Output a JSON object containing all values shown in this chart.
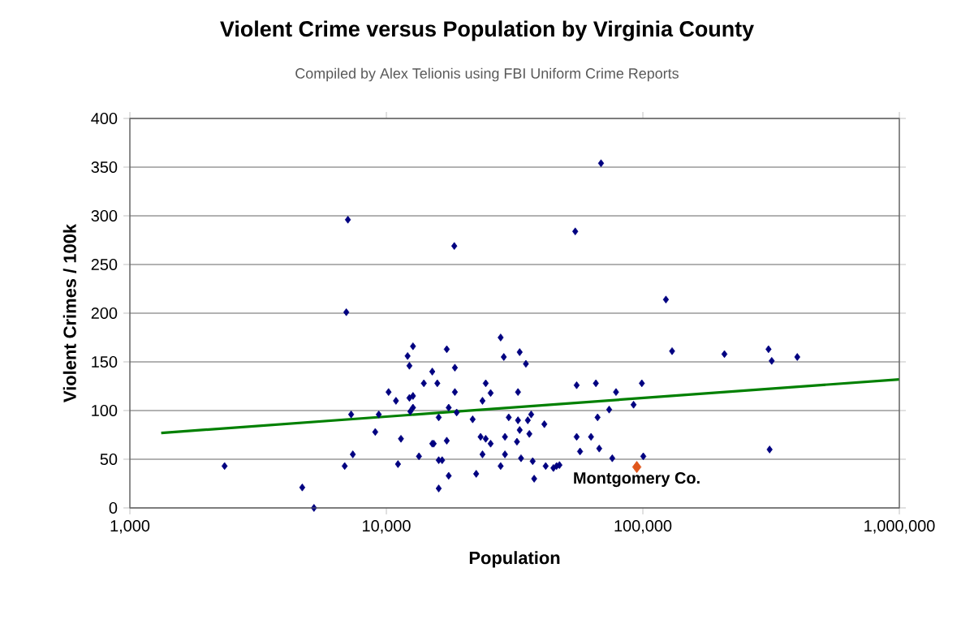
{
  "chart_data": {
    "type": "scatter",
    "title": "Violent Crime versus Population by Virginia County",
    "subtitle": "Compiled by Alex Telionis using FBI Uniform Crime Reports",
    "xlabel": "Population",
    "ylabel": "Violent Crimes / 100k",
    "log": "x",
    "grid": "y",
    "marker": "diamond",
    "xlim": [
      1000,
      1000000
    ],
    "xticks": [
      {
        "value": 1000,
        "label": "1,000"
      },
      {
        "value": 10000,
        "label": "10,000"
      },
      {
        "value": 100000,
        "label": "100,000"
      },
      {
        "value": 1000000,
        "label": "1,000,000"
      }
    ],
    "ylim": [
      0,
      400
    ],
    "yticks": [
      0,
      50,
      100,
      150,
      200,
      250,
      300,
      350,
      400
    ],
    "series": [
      {
        "color": "#000080",
        "x": [
          6980,
          12700,
          12100,
          12300,
          10200,
          10900,
          12300,
          12700,
          12700,
          12400,
          7290,
          9340,
          9050,
          11400,
          2340,
          6880,
          7400,
          11100,
          13400,
          4700,
          5220,
          7080,
          68700,
          54500,
          18400,
          123000,
          130000,
          17200,
          15100,
          14000,
          15800,
          18500,
          18500,
          17500,
          16000,
          18800,
          27900,
          28700,
          33100,
          35000,
          24400,
          25500,
          23700,
          32600,
          21700,
          30000,
          36700,
          35600,
          32600,
          33100,
          36100,
          41300,
          23300,
          24400,
          25500,
          29000,
          32300,
          15100,
          15300,
          17200,
          16000,
          16500,
          23700,
          29000,
          33500,
          37200,
          27900,
          41800,
          44800,
          46100,
          47300,
          17500,
          22400,
          37700,
          16000,
          55200,
          65600,
          78600,
          99100,
          92000,
          73900,
          66600,
          55200,
          62800,
          56900,
          67600,
          76000,
          100400,
          208000,
          309000,
          318000,
          400000,
          312000
        ],
        "values": [
          201,
          166,
          156,
          146,
          119,
          110,
          113,
          115,
          103,
          99,
          96,
          96,
          78,
          71,
          43,
          43,
          55,
          45,
          53,
          21,
          0,
          296,
          354,
          284,
          269,
          214,
          161,
          163,
          140,
          128,
          128,
          144,
          119,
          103,
          93,
          98,
          175,
          155,
          160,
          148,
          128,
          118,
          110,
          119,
          91,
          93,
          96,
          90,
          90,
          80,
          76,
          86,
          73,
          71,
          66,
          73,
          68,
          66,
          66,
          69,
          49,
          49,
          55,
          55,
          51,
          48,
          43,
          43,
          41,
          43,
          44,
          33,
          35,
          30,
          20,
          126,
          128,
          119,
          128,
          106,
          101,
          93,
          73,
          73,
          58,
          61,
          51,
          53,
          158,
          163,
          151,
          155,
          60
        ]
      },
      {
        "color": "#e0561b",
        "x": [
          94700
        ],
        "values": [
          42
        ]
      },
      {
        "type": "line",
        "marker": "none",
        "color": "#008000",
        "x": [
          1325,
          1000000
        ],
        "values": [
          77,
          132
        ]
      }
    ],
    "annotations": [
      {
        "text": "Montgomery Co.",
        "x": 94700,
        "y": 42
      }
    ]
  }
}
